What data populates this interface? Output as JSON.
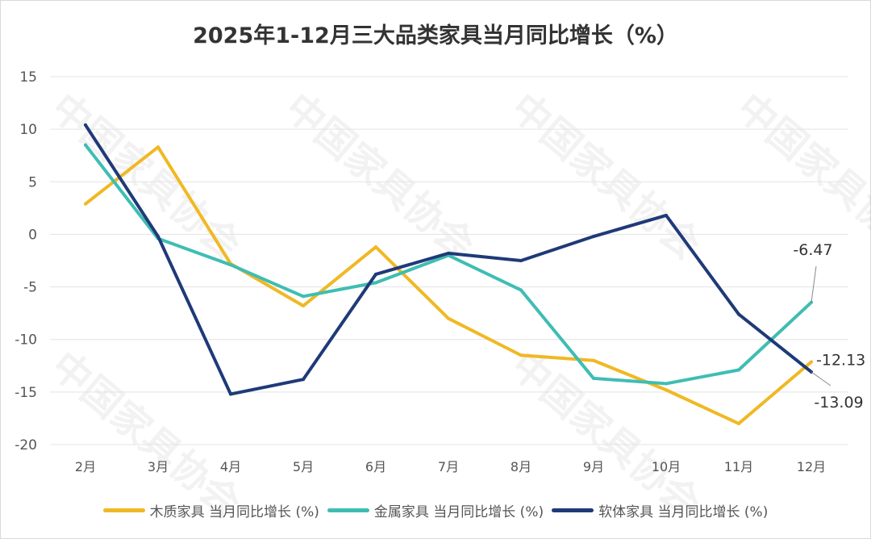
{
  "watermark": "中国家具协会 CHINA NATIONAL FURNITURE ASSOCIATION",
  "chart_data": {
    "type": "line",
    "title": "2025年1-12月三大品类家具当月同比增长（%）",
    "xlabel": "",
    "ylabel": "",
    "categories": [
      "2月",
      "3月",
      "4月",
      "5月",
      "6月",
      "7月",
      "8月",
      "9月",
      "10月",
      "11月",
      "12月"
    ],
    "ylim": [
      -20,
      15
    ],
    "yticks": [
      15,
      10,
      5,
      0,
      -5,
      -10,
      -15,
      -20
    ],
    "grid": true,
    "legend_position": "bottom",
    "series": [
      {
        "name": "木质家具 当月同比增长 (%)",
        "color": "#f0b823",
        "values": [
          2.9,
          8.3,
          -2.8,
          -6.8,
          -1.2,
          -8.0,
          -11.5,
          -12.0,
          -14.8,
          -18.0,
          -12.13
        ]
      },
      {
        "name": "金属家具 当月同比增长 (%)",
        "color": "#3fbdb3",
        "values": [
          8.5,
          -0.4,
          -2.9,
          -5.9,
          -4.6,
          -2.0,
          -5.3,
          -13.7,
          -14.2,
          -12.9,
          -6.47
        ]
      },
      {
        "name": "软体家具 当月同比增长 (%)",
        "color": "#1f3a78",
        "values": [
          10.4,
          -0.2,
          -15.2,
          -13.8,
          -3.8,
          -1.8,
          -2.5,
          -0.2,
          1.8,
          -7.6,
          -13.09
        ]
      }
    ],
    "annotations": [
      "-6.47",
      "-12.13",
      "-13.09"
    ]
  }
}
